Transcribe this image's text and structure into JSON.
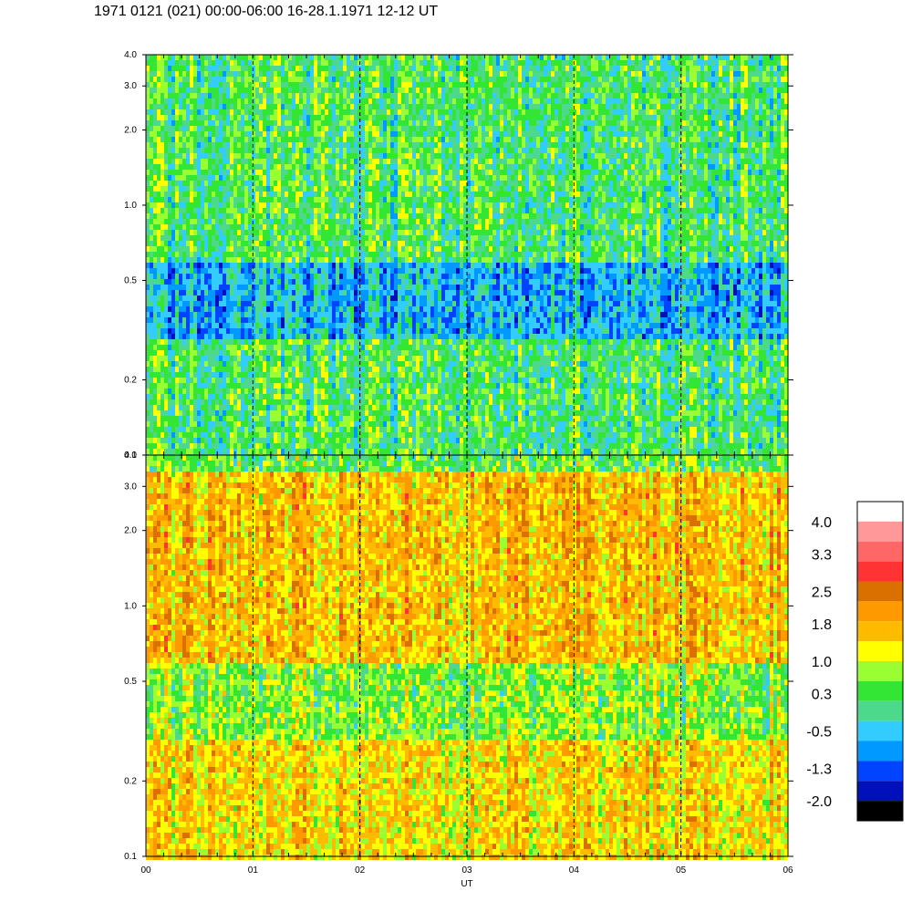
{
  "title": "1971 0121 (021) 00:00-06:00 16-28.1.1971  12-12 UT",
  "chart_data": [
    {
      "type": "heatmap",
      "panel": "upper",
      "x_axis": {
        "range": [
          0,
          6
        ],
        "unit_label": "UT"
      },
      "y_axis": {
        "scale": "log",
        "range": [
          0.1,
          4.0
        ],
        "ticks": [
          0.1,
          0.2,
          0.5,
          1.0,
          2.0,
          3.0,
          4.0
        ],
        "tick_labels": [
          "0.1",
          "0.2",
          "0.5",
          "1.0",
          "2.0",
          "3.0",
          "4.0"
        ]
      },
      "dominant_level_by_band": [
        {
          "y_range": [
            0.1,
            0.3
          ],
          "level": 0.3
        },
        {
          "y_range": [
            0.3,
            0.6
          ],
          "level": -0.5
        },
        {
          "y_range": [
            0.6,
            4.0
          ],
          "level": 0.3
        }
      ]
    },
    {
      "type": "heatmap",
      "panel": "lower",
      "x_axis": {
        "range": [
          0,
          6
        ],
        "unit_label": "UT",
        "ticks": [
          0,
          1,
          2,
          3,
          4,
          5,
          6
        ],
        "tick_labels": [
          "00",
          "01",
          "02",
          "03",
          "04",
          "05",
          "06"
        ]
      },
      "y_axis": {
        "scale": "log",
        "range": [
          0.1,
          4.0
        ],
        "ticks": [
          0.1,
          0.2,
          0.5,
          1.0,
          2.0,
          3.0,
          4.0
        ],
        "tick_labels": [
          "0.1",
          "0.2",
          "0.5",
          "1.0",
          "2.0",
          "3.0",
          "4.0"
        ]
      },
      "dominant_level_by_band": [
        {
          "y_range": [
            0.1,
            0.3
          ],
          "level": 1.4
        },
        {
          "y_range": [
            0.3,
            0.6
          ],
          "level": 0.7
        },
        {
          "y_range": [
            0.6,
            3.5
          ],
          "level": 1.6
        },
        {
          "y_range": [
            3.5,
            4.0
          ],
          "level": 0.5
        }
      ]
    }
  ],
  "vertical_dashed_lines_at": [
    1,
    2,
    3,
    4,
    5
  ],
  "xlabel": "UT",
  "colorbar": {
    "labels": [
      "4.0",
      "3.3",
      "2.5",
      "1.8",
      "1.0",
      "0.3",
      "-0.5",
      "-1.3",
      "-2.0"
    ],
    "colors_top_to_bottom": [
      "#ffffff",
      "#ff9999",
      "#ff6666",
      "#ff3333",
      "#d97000",
      "#ff9900",
      "#ffbb00",
      "#ffff00",
      "#99ff33",
      "#33e633",
      "#4dd98c",
      "#33ccff",
      "#0099ff",
      "#0044ff",
      "#0011bb",
      "#000000"
    ]
  }
}
